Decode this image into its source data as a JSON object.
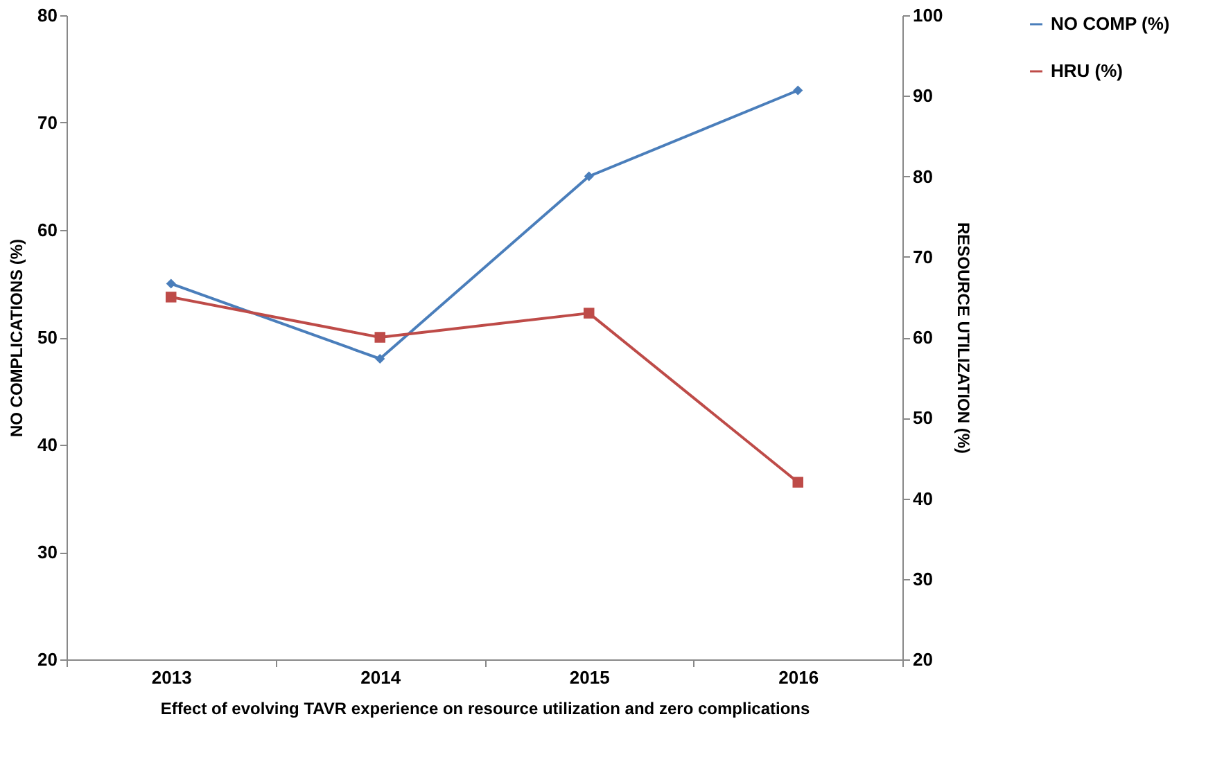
{
  "chart_data": {
    "type": "line",
    "xlabel": "Effect of evolving TAVR experience on resource utilization and zero complications",
    "ylabel": "NO COMPLICATIONS  (%)",
    "y2label": "RESOURCE UTILIZATION (%)",
    "categories": [
      "2013",
      "2014",
      "2015",
      "2016"
    ],
    "series": [
      {
        "name": "NO  COMP (%)",
        "color": "#4a7ebb",
        "marker": "diamond",
        "values": [
          55,
          48,
          65,
          73
        ]
      },
      {
        "name": "HRU (%)",
        "color": "#be4b48",
        "marker": "square",
        "axis": "y2",
        "values": [
          65,
          60,
          63,
          42
        ]
      }
    ],
    "ylim": [
      20,
      80
    ],
    "yticks": [
      20,
      30,
      40,
      50,
      60,
      70,
      80
    ],
    "y2lim": [
      20,
      100
    ],
    "y2ticks": [
      20,
      30,
      40,
      50,
      60,
      70,
      80,
      90,
      100
    ],
    "grid": false,
    "legend": "right",
    "line_style": "solid"
  }
}
